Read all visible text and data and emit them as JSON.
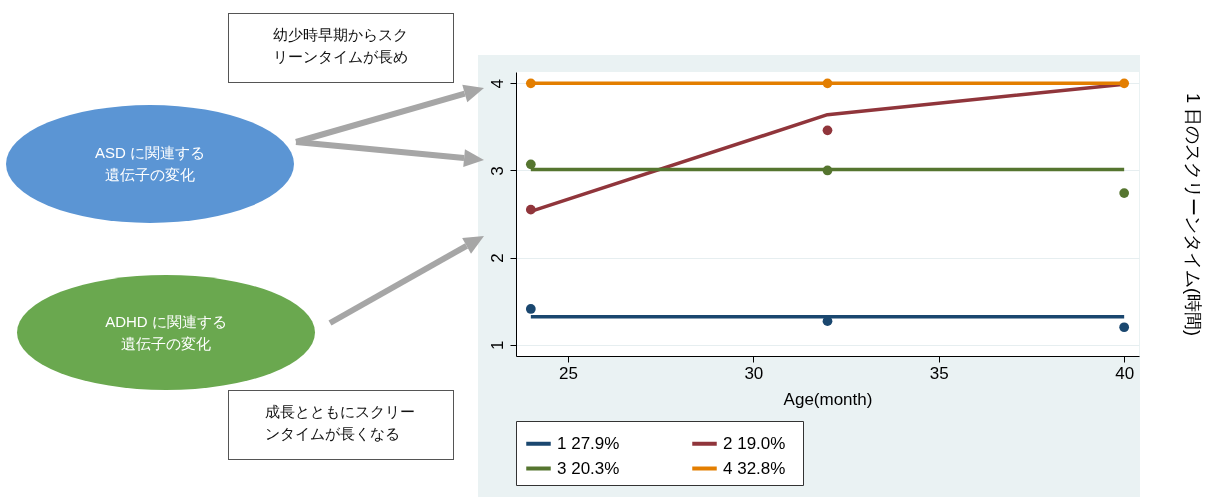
{
  "chart_data": {
    "type": "line",
    "xlabel": "Age(month)",
    "ylabel": "1 日のスクリーンタイム(時間)",
    "annotations": [
      "幼少時早期からスクリーンタイムが長め",
      "ASD に関連する遺伝子の変化",
      "ADHD に関連する遺伝子の変化",
      "成長とともにスクリーンタイムが長くなる"
    ],
    "xlim": [
      23.6,
      40.4
    ],
    "xticks": [
      25,
      30,
      35,
      40
    ],
    "ylim": [
      0.87,
      4.13
    ],
    "yticks": [
      1,
      2,
      3,
      4
    ],
    "grid": "y",
    "legend": "bottom",
    "series": [
      {
        "name": "1   27.9%",
        "type": "line",
        "color": "#1a476f",
        "x": [
          24,
          32,
          40
        ],
        "values": [
          1.32,
          1.32,
          1.32
        ]
      },
      {
        "name": "2   19.0%",
        "type": "line",
        "color": "#90353b",
        "x": [
          24,
          32,
          40
        ],
        "values": [
          2.53,
          3.64,
          3.99
        ]
      },
      {
        "name": "3   20.3%",
        "type": "line",
        "color": "#55752f",
        "x": [
          24,
          32,
          40
        ],
        "values": [
          3.01,
          3.01,
          3.01
        ]
      },
      {
        "name": "4   32.8%",
        "type": "line",
        "color": "#e37e00",
        "x": [
          24,
          32,
          40
        ],
        "values": [
          4.0,
          4.0,
          4.0
        ]
      },
      {
        "type": "scatter",
        "color": "#1a476f",
        "x": [
          24,
          32,
          40
        ],
        "values": [
          1.41,
          1.27,
          1.2
        ]
      },
      {
        "type": "scatter",
        "color": "#90353b",
        "x": [
          24,
          32
        ],
        "values": [
          2.55,
          3.46
        ]
      },
      {
        "type": "scatter",
        "color": "#55752f",
        "x": [
          24,
          32,
          40
        ],
        "values": [
          3.07,
          3.0,
          2.74
        ]
      },
      {
        "type": "scatter",
        "color": "#e37e00",
        "x": [
          24,
          32,
          40
        ],
        "values": [
          4.0,
          4.0,
          4.0
        ]
      }
    ]
  }
}
